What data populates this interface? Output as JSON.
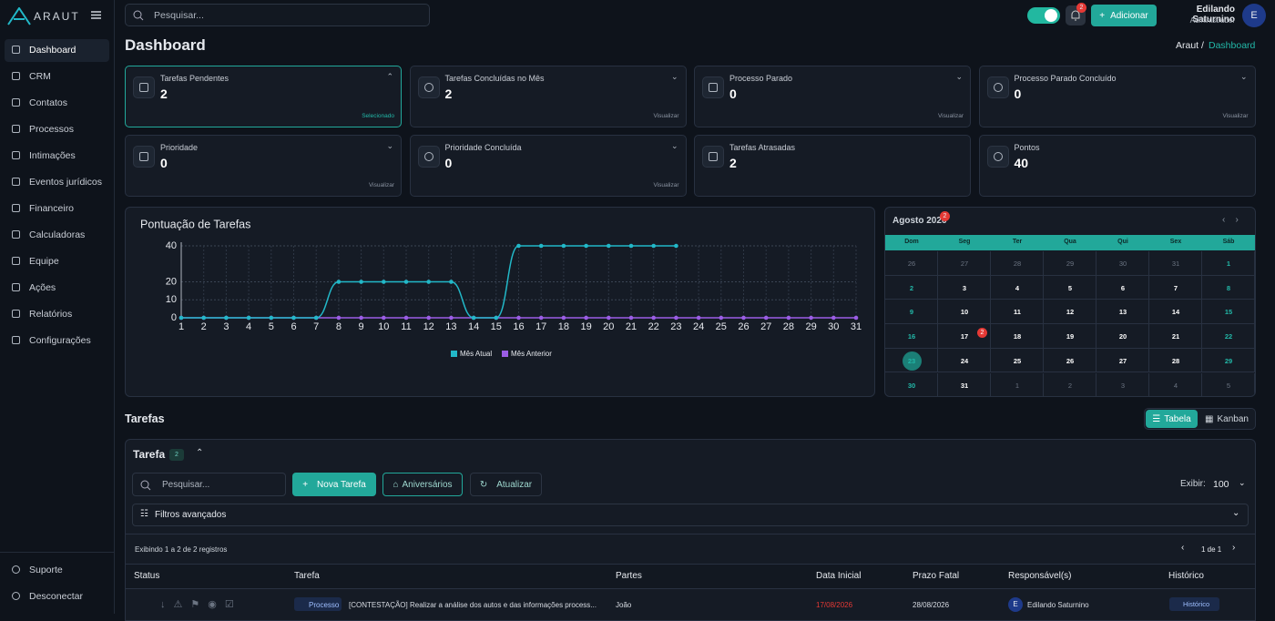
{
  "sidebar": {
    "logo": "ARAUT",
    "menu": [
      "Dashboard",
      "CRM",
      "Contatos",
      "Processos",
      "Intimações",
      "Eventos jurídicos",
      "Financeiro",
      "Calculadoras",
      "Equipe",
      "Ações",
      "Relatórios",
      "Configurações"
    ],
    "footer": [
      "Suporte",
      "Desconectar"
    ]
  },
  "topbar": {
    "search": "Pesquisar...",
    "notifications": 2,
    "add_button": "Adicionar",
    "user_name": "Edilando Saturnino",
    "user_role": "Administrador",
    "avatar": "E"
  },
  "page": {
    "title": "Dashboard",
    "breadcrumb": [
      "Araut /",
      "Dashboard"
    ]
  },
  "cards": [
    {
      "label": "Tarefas Pendentes",
      "value": 2,
      "footer": "Selecionado"
    },
    {
      "label": "Tarefas Concluídas no Mês",
      "value": 2,
      "footer": "Visualizar"
    },
    {
      "label": "Processo Parado",
      "value": 0,
      "footer": "Visualizar"
    },
    {
      "label": "Processo Parado Concluído",
      "value": 0,
      "footer": "Visualizar"
    },
    {
      "label": "Prioridade",
      "value": 0,
      "footer": "Visualizar"
    },
    {
      "label": "Prioridade Concluída",
      "value": 0,
      "footer": "Visualizar"
    },
    {
      "label": "Tarefas Atrasadas",
      "value": 2
    },
    {
      "label": "Pontos",
      "value": 40
    }
  ],
  "chart_data": {
    "type": "line",
    "title": "Pontuação de Tarefas",
    "categories": [
      1,
      2,
      3,
      4,
      5,
      6,
      7,
      8,
      9,
      10,
      11,
      12,
      13,
      14,
      15,
      16,
      17,
      18,
      19,
      20,
      21,
      22,
      23,
      24,
      25,
      26,
      27,
      28,
      29,
      30,
      31
    ],
    "series": [
      {
        "name": "Mês Atual",
        "color": "#22b8c8",
        "values": [
          0,
          0,
          0,
          0,
          0,
          0,
          0,
          20,
          20,
          20,
          20,
          20,
          20,
          0,
          0,
          40,
          40,
          40,
          40,
          40,
          40,
          40,
          40,
          null,
          null,
          null,
          null,
          null,
          null,
          null,
          null
        ]
      },
      {
        "name": "Mês Anterior",
        "color": "#9b5de5",
        "values": [
          0,
          0,
          0,
          0,
          0,
          0,
          0,
          0,
          0,
          0,
          0,
          0,
          0,
          0,
          0,
          0,
          0,
          0,
          0,
          0,
          0,
          0,
          0,
          0,
          0,
          0,
          0,
          0,
          0,
          0,
          0
        ]
      }
    ],
    "ylim": [
      0,
      40
    ],
    "yticks": [
      0,
      10,
      20,
      40
    ],
    "grid": true,
    "legend": "bottom"
  },
  "calendar": {
    "title": "Agosto 2026",
    "badge": 2,
    "weekdays": [
      "Dom",
      "Seg",
      "Ter",
      "Qua",
      "Qui",
      "Sex",
      "Sáb"
    ],
    "weeks": [
      [
        26,
        27,
        28,
        29,
        30,
        31,
        1
      ],
      [
        2,
        3,
        4,
        5,
        6,
        7,
        8
      ],
      [
        9,
        10,
        11,
        12,
        13,
        14,
        15
      ],
      [
        16,
        17,
        18,
        19,
        20,
        21,
        22
      ],
      [
        23,
        24,
        25,
        26,
        27,
        28,
        29
      ],
      [
        30,
        31,
        1,
        2,
        3,
        4,
        5
      ]
    ],
    "day_badge": 2
  },
  "tasks": {
    "section_title": "Tarefas",
    "view_table": "Tabela",
    "view_kanban": "Kanban",
    "panel_title": "Tarefa",
    "count": 2,
    "search": "Pesquisar...",
    "new_task": "Nova Tarefa",
    "birthdays": "Aniversários",
    "refresh": "Atualizar",
    "show_label": "Exibir:",
    "show_value": 100,
    "filters": "Filtros avançados",
    "showing": "Exibindo 1 a 2 de 2 registros",
    "pages": "1 de 1",
    "columns": [
      "Status",
      "Tarefa",
      "Partes",
      "Data Inicial",
      "Prazo Fatal",
      "Responsável(s)",
      "Histórico"
    ],
    "rows": [
      {
        "type": "Processo",
        "task": "[CONTESTAÇÃO] Realizar a análise dos autos e das informações process...",
        "parties": "João",
        "start": "17/08/2026",
        "deadline": "28/08/2026",
        "avatar": "E",
        "responsible": "Edilando Saturnino",
        "history": "Histórico"
      }
    ]
  }
}
